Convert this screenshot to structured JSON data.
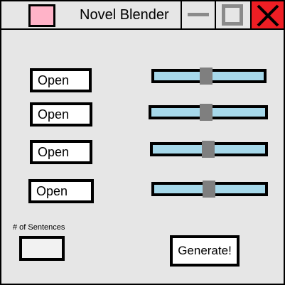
{
  "window": {
    "title": "Novel Blender"
  },
  "colors": {
    "background": "#e6e6e6",
    "app_icon": "#ffb3c8",
    "close_button": "#ee1e24",
    "slider_track": "#a6d8ea",
    "slider_thumb": "#7f7f7f"
  },
  "titlebar": {
    "icons": [
      "app-icon",
      "minimize-icon",
      "maximize-icon",
      "close-icon"
    ]
  },
  "main": {
    "open_buttons": [
      {
        "label": "Open"
      },
      {
        "label": "Open"
      },
      {
        "label": "Open"
      },
      {
        "label": "Open"
      }
    ],
    "sliders": [
      {
        "value": 0.47
      },
      {
        "value": 0.48
      },
      {
        "value": 0.49
      },
      {
        "value": 0.49
      }
    ],
    "sentences_label": "# of Sentences",
    "sentences_value": "",
    "generate_label": "Generate!"
  }
}
